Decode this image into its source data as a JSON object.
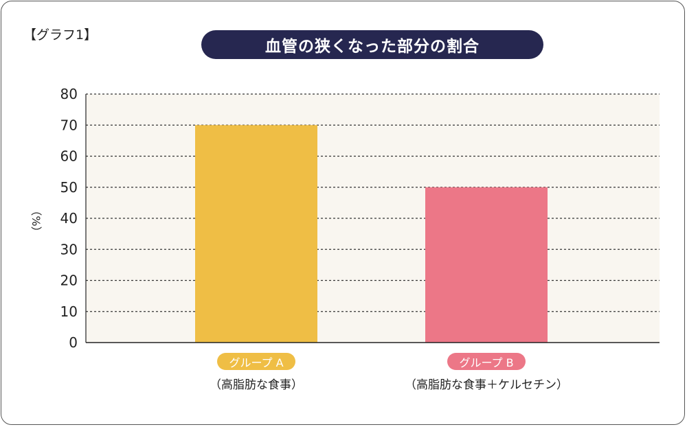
{
  "graph_label": "【グラフ1】",
  "chart_data": {
    "type": "bar",
    "title": "血管の狭くなった部分の割合",
    "categories": [
      "グループ A",
      "グループ B"
    ],
    "category_notes": [
      "（高脂肪な食事）",
      "（高脂肪な食事＋ケルセチン）"
    ],
    "values": [
      70,
      50
    ],
    "colors": [
      "#EFBE45",
      "#EC7787"
    ],
    "xlabel": "",
    "ylabel": "（%）",
    "ylim": [
      0,
      80
    ],
    "yticks": [
      0,
      10,
      20,
      30,
      40,
      50,
      60,
      70,
      80
    ],
    "grid": true
  }
}
